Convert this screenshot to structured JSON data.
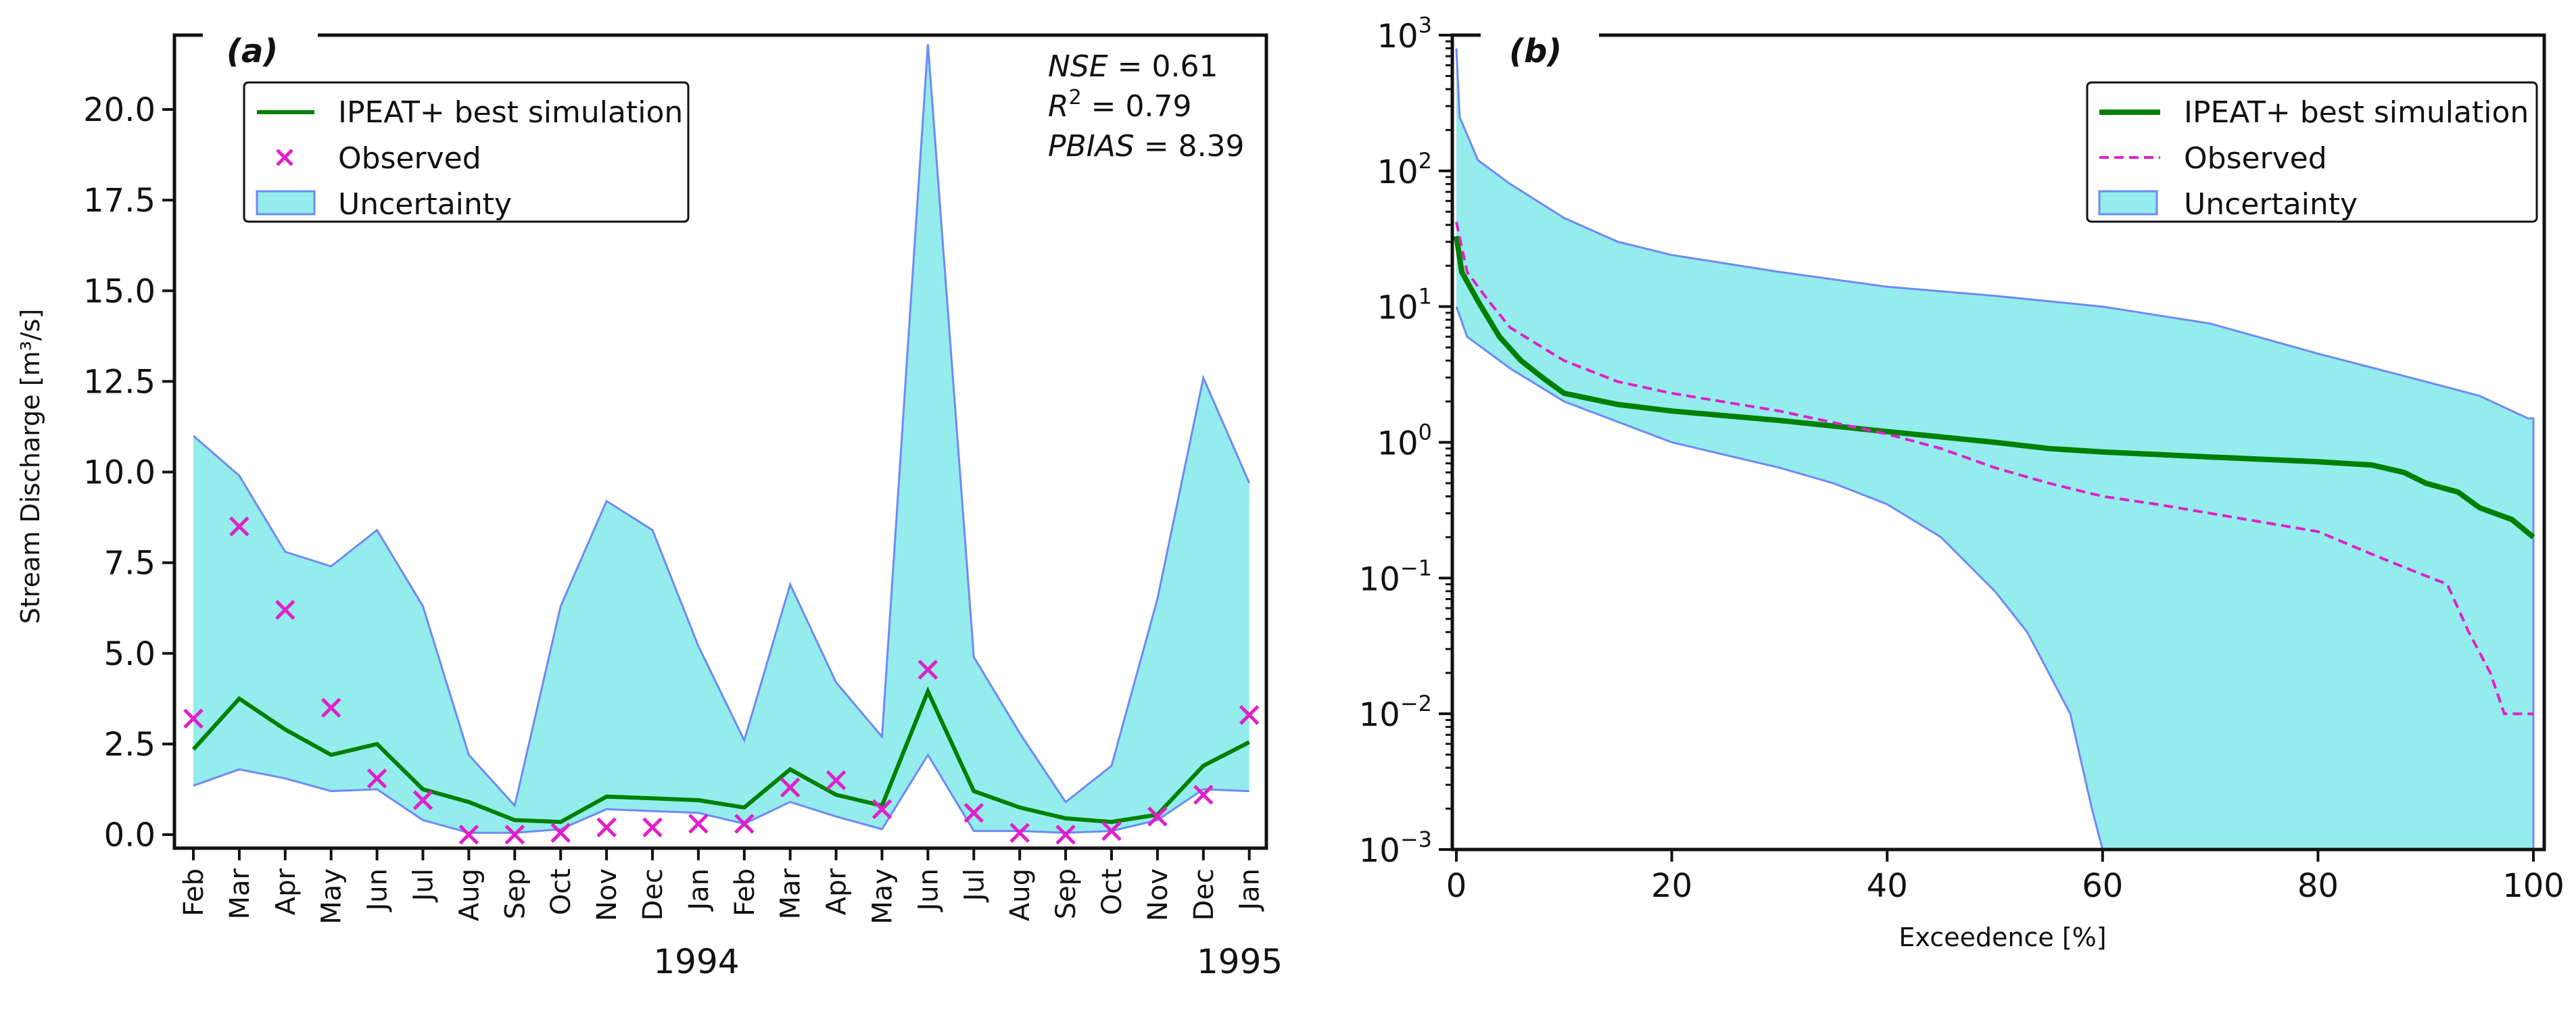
{
  "colors": {
    "fill": "#95ECEC",
    "band_edge": "#6E8AF5",
    "sim": "#008000",
    "obs": "#E020C8",
    "axis": "#111111"
  },
  "chart_data": [
    {
      "type": "line",
      "panel_label": "(a)",
      "ylabel": "Stream Discharge [m³/s]",
      "ylim": [
        0,
        22
      ],
      "yticks": [
        0,
        2.5,
        5,
        7.5,
        10,
        12.5,
        15,
        17.5,
        20
      ],
      "ytick_labels": [
        "0.0",
        "2.5",
        "5.0",
        "7.5",
        "10.0",
        "12.5",
        "15.0",
        "17.5",
        "20.0"
      ],
      "categories": [
        "Feb",
        "Mar",
        "Apr",
        "May",
        "Jun",
        "Jul",
        "Aug",
        "Sep",
        "Oct",
        "Nov",
        "Dec",
        "Jan",
        "Feb",
        "Mar",
        "Apr",
        "May",
        "Jun",
        "Jul",
        "Aug",
        "Sep",
        "Oct",
        "Nov",
        "Dec",
        "Jan"
      ],
      "year_labels": [
        "1994",
        "1995"
      ],
      "legend": {
        "position": "top-left",
        "entries": [
          "IPEAT+ best simulation",
          "Observed",
          "Uncertainty"
        ]
      },
      "stats": [
        {
          "name": "NSE",
          "value": "0.61"
        },
        {
          "name": "R",
          "sup": "2",
          "value": "0.79"
        },
        {
          "name": "PBIAS",
          "value": "8.39"
        }
      ],
      "series": [
        {
          "name": "Uncertainty upper",
          "values": [
            11.0,
            9.9,
            7.8,
            7.4,
            8.4,
            6.3,
            2.2,
            0.8,
            6.3,
            9.2,
            8.4,
            5.2,
            2.6,
            6.9,
            4.2,
            2.7,
            21.8,
            4.9,
            2.8,
            0.9,
            1.9,
            6.5,
            12.6,
            9.7
          ]
        },
        {
          "name": "Uncertainty lower",
          "values": [
            1.35,
            1.8,
            1.55,
            1.2,
            1.25,
            0.4,
            0.05,
            0.05,
            0.15,
            0.7,
            0.65,
            0.6,
            0.3,
            0.9,
            0.5,
            0.15,
            2.2,
            0.1,
            0.1,
            0.05,
            0.1,
            0.4,
            1.25,
            1.2
          ]
        },
        {
          "name": "IPEAT+ best simulation",
          "values": [
            2.35,
            3.75,
            2.9,
            2.2,
            2.5,
            1.25,
            0.9,
            0.4,
            0.35,
            1.05,
            1.0,
            0.95,
            0.75,
            1.8,
            1.1,
            0.8,
            3.95,
            1.2,
            0.75,
            0.45,
            0.35,
            0.55,
            1.9,
            2.55
          ]
        },
        {
          "name": "Observed",
          "values": [
            3.2,
            8.5,
            6.2,
            3.5,
            1.55,
            0.95,
            0,
            0,
            0.05,
            0.2,
            0.2,
            0.3,
            0.3,
            1.3,
            1.5,
            0.7,
            4.55,
            0.6,
            0.05,
            0,
            0.1,
            0.5,
            1.1,
            3.3
          ]
        }
      ]
    },
    {
      "type": "line",
      "panel_label": "(b)",
      "xlabel": "Exceedence [%]",
      "xlim": [
        -2,
        102
      ],
      "xticks": [
        0,
        20,
        40,
        60,
        80,
        100
      ],
      "ylim_log10": [
        -3,
        3
      ],
      "yticks_exp": [
        "3",
        "2",
        "1",
        "0",
        "−1",
        "−2",
        "−3"
      ],
      "legend": {
        "position": "top-right",
        "entries": [
          "IPEAT+ best simulation",
          "Observed",
          "Uncertainty"
        ]
      },
      "series": [
        {
          "name": "Uncertainty upper",
          "x": [
            0,
            0.3,
            2,
            5,
            10,
            15,
            20,
            30,
            40,
            50,
            60,
            70,
            80,
            90,
            95,
            99.5,
            100
          ],
          "y": [
            800,
            250,
            120,
            80,
            45,
            30,
            24,
            18,
            14,
            12,
            10,
            7.5,
            4.5,
            2.8,
            2.2,
            1.5,
            1.5
          ]
        },
        {
          "name": "Uncertainty lower",
          "x": [
            0,
            1,
            5,
            10,
            20,
            30,
            35,
            40,
            45,
            50,
            53,
            55,
            57,
            59,
            60
          ],
          "y": [
            10,
            6,
            3.5,
            2,
            1,
            0.65,
            0.5,
            0.35,
            0.2,
            0.08,
            0.04,
            0.02,
            0.01,
            0.002,
            0.001
          ]
        },
        {
          "name": "IPEAT+ best simulation",
          "x": [
            0,
            0.5,
            2,
            4,
            6,
            8,
            10,
            15,
            20,
            30,
            40,
            50,
            55,
            60,
            70,
            80,
            85,
            88,
            90,
            93,
            95,
            98,
            100
          ],
          "y": [
            33,
            18,
            11,
            6,
            4,
            3,
            2.3,
            1.9,
            1.7,
            1.45,
            1.2,
            1.0,
            0.9,
            0.85,
            0.78,
            0.72,
            0.68,
            0.6,
            0.5,
            0.43,
            0.33,
            0.27,
            0.2
          ]
        },
        {
          "name": "Observed",
          "x": [
            0,
            1,
            3,
            5,
            10,
            15,
            20,
            30,
            40,
            45,
            50,
            55,
            60,
            65,
            70,
            80,
            85,
            88,
            92,
            94,
            96,
            97.3,
            100
          ],
          "y": [
            42,
            18,
            11,
            7,
            4,
            2.8,
            2.3,
            1.7,
            1.15,
            0.9,
            0.65,
            0.5,
            0.4,
            0.35,
            0.3,
            0.22,
            0.15,
            0.12,
            0.09,
            0.04,
            0.02,
            0.01,
            0.01
          ]
        }
      ]
    }
  ]
}
